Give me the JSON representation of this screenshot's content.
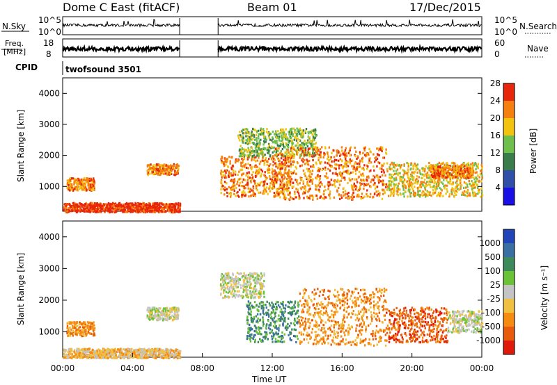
{
  "header": {
    "station": "Dome C East (fitACF)",
    "beam": "Beam 01",
    "date": "17/Dec/2015"
  },
  "chart_data": [
    {
      "type": "line",
      "panel": "noise",
      "left_label": "N.Sky",
      "right_label": "N.Search",
      "left_ticks": [
        "10^5",
        "10^0"
      ],
      "right_ticks": [
        "10^5",
        "10^0"
      ],
      "segments": [
        [
          0.0,
          6.7
        ],
        [
          8.9,
          24.0
        ]
      ]
    },
    {
      "type": "line",
      "panel": "freq-nave",
      "left_label_lines": [
        "Freq.",
        "[MHz]"
      ],
      "right_label": "Nave",
      "left_ticks": [
        "18",
        "8"
      ],
      "right_ticks": [
        "60",
        "0"
      ],
      "segments": [
        [
          0.0,
          6.7
        ],
        [
          8.9,
          24.0
        ]
      ]
    },
    {
      "type": "table",
      "panel": "cpid",
      "label": "CPID",
      "program": "twofsound 3501"
    },
    {
      "type": "heatmap",
      "panel": "power",
      "ylabel": "Slant Range [km]",
      "yticks": [
        "1000",
        "2000",
        "3000",
        "4000"
      ],
      "ylim": [
        200,
        4500
      ],
      "xlim": [
        0,
        24
      ],
      "colorbar_label": "Power [dB]",
      "colorbar_ticks": [
        "4",
        "8",
        "12",
        "16",
        "20",
        "24",
        "28"
      ],
      "colorbar_colors": [
        "#1a10e6",
        "#2f4fa8",
        "#3a7d4c",
        "#6fbf4d",
        "#f2c40f",
        "#f57f0f",
        "#e8260b"
      ],
      "regions": [
        {
          "t0": 0.0,
          "t1": 6.7,
          "r0": 200,
          "r1": 500,
          "level": 6
        },
        {
          "t0": 0.2,
          "t1": 1.8,
          "r0": 900,
          "r1": 1300,
          "level": 5
        },
        {
          "t0": 4.8,
          "t1": 6.6,
          "r0": 1400,
          "r1": 1750,
          "level": 5
        },
        {
          "t0": 9.0,
          "t1": 13.0,
          "r0": 700,
          "r1": 2000,
          "level": 5
        },
        {
          "t0": 10.0,
          "t1": 14.5,
          "r0": 2000,
          "r1": 2900,
          "level": 3
        },
        {
          "t0": 12.0,
          "t1": 18.5,
          "r0": 600,
          "r1": 2300,
          "level": 5
        },
        {
          "t0": 18.5,
          "t1": 24.0,
          "r0": 700,
          "r1": 1800,
          "level": 4
        },
        {
          "t0": 21.0,
          "t1": 23.5,
          "r0": 1300,
          "r1": 1700,
          "level": 5
        }
      ]
    },
    {
      "type": "heatmap",
      "panel": "velocity",
      "ylabel": "Slant Range [km]",
      "yticks": [
        "1000",
        "2000",
        "3000",
        "4000"
      ],
      "ylim": [
        200,
        4500
      ],
      "xlim": [
        0,
        24
      ],
      "xticks": [
        "00:00",
        "04:00",
        "08:00",
        "12:00",
        "16:00",
        "20:00",
        "00:00"
      ],
      "xlabel": "Time UT",
      "colorbar_label": "Velocity [m s⁻¹]",
      "colorbar_ticks": [
        "1000",
        "500",
        "100",
        "25",
        "-25",
        "-100",
        "-500",
        "-1000"
      ],
      "colorbar_colors": [
        "#2144b8",
        "#3a6fa3",
        "#3d8a5a",
        "#6cc236",
        "#c4c4c4",
        "#f0c040",
        "#f58c10",
        "#e85a0c",
        "#e01a0a"
      ],
      "regions": [
        {
          "t0": 0.0,
          "t1": 6.7,
          "r0": 200,
          "r1": 500,
          "level": 3
        },
        {
          "t0": 0.2,
          "t1": 1.8,
          "r0": 900,
          "r1": 1350,
          "level": 2
        },
        {
          "t0": 4.8,
          "t1": 6.6,
          "r0": 1400,
          "r1": 1800,
          "level": 4
        },
        {
          "t0": 9.0,
          "t1": 11.5,
          "r0": 2100,
          "r1": 2900,
          "level": 4
        },
        {
          "t0": 10.5,
          "t1": 13.5,
          "r0": 700,
          "r1": 2000,
          "level": 6
        },
        {
          "t0": 13.5,
          "t1": 18.5,
          "r0": 600,
          "r1": 2400,
          "level": 2
        },
        {
          "t0": 18.5,
          "t1": 22.0,
          "r0": 700,
          "r1": 1800,
          "level": 1
        },
        {
          "t0": 22.0,
          "t1": 24.0,
          "r0": 1000,
          "r1": 1700,
          "level": 4
        }
      ]
    }
  ]
}
